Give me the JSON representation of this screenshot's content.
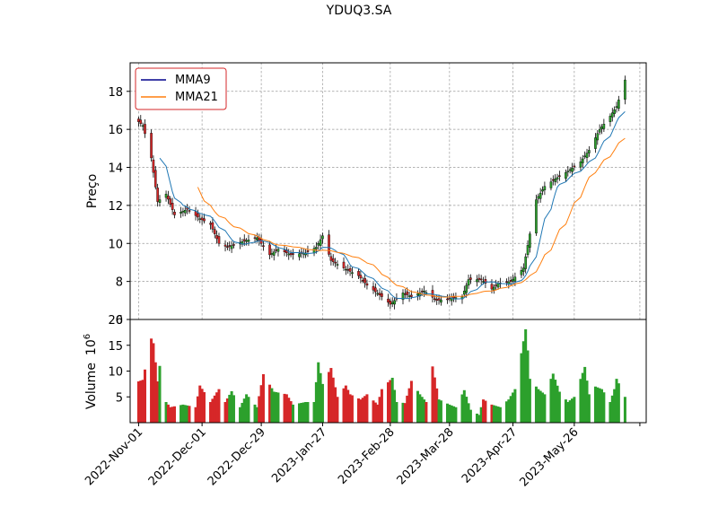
{
  "chart_data": {
    "type": "candlestick",
    "title": "YDUQ3.SA",
    "price_panel": {
      "ylabel": "Preço",
      "ylim": [
        6,
        19.5
      ],
      "yticks": [
        6,
        8,
        10,
        12,
        14,
        16,
        18
      ],
      "grid": true,
      "legend_placement": "top-left",
      "legend": [
        "MMA9",
        "MMA21"
      ],
      "mma9_color": "#1f77b4",
      "mma21_color": "#ff7f0e",
      "legend_mma9_color": "#00008b",
      "up_color": "#2ca02c",
      "down_color": "#d62728",
      "anchors_close": [
        [
          "2022-11-01",
          16.4
        ],
        [
          "2022-11-03",
          16.2
        ],
        [
          "2022-11-07",
          14.5
        ],
        [
          "2022-11-10",
          12.2
        ],
        [
          "2022-11-14",
          12.6
        ],
        [
          "2022-11-18",
          11.5
        ],
        [
          "2022-11-24",
          11.8
        ],
        [
          "2022-11-30",
          11.3
        ],
        [
          "2022-12-05",
          11.0
        ],
        [
          "2022-12-09",
          10.0
        ],
        [
          "2022-12-13",
          9.8
        ],
        [
          "2022-12-20",
          10.1
        ],
        [
          "2022-12-27",
          10.3
        ],
        [
          "2023-01-02",
          9.4
        ],
        [
          "2023-01-06",
          9.7
        ],
        [
          "2023-01-12",
          9.4
        ],
        [
          "2023-01-19",
          9.5
        ],
        [
          "2023-01-24",
          9.8
        ],
        [
          "2023-01-27",
          10.4
        ],
        [
          "2023-01-31",
          9.1
        ],
        [
          "2023-02-06",
          8.7
        ],
        [
          "2023-02-13",
          8.3
        ],
        [
          "2023-02-17",
          7.8
        ],
        [
          "2023-02-24",
          7.2
        ],
        [
          "2023-02-28",
          6.8
        ],
        [
          "2023-03-06",
          7.4
        ],
        [
          "2023-03-10",
          7.2
        ],
        [
          "2023-03-16",
          7.5
        ],
        [
          "2023-03-22",
          7.0
        ],
        [
          "2023-03-28",
          7.1
        ],
        [
          "2023-04-03",
          7.2
        ],
        [
          "2023-04-06",
          8.1
        ],
        [
          "2023-04-12",
          8.1
        ],
        [
          "2023-04-17",
          7.6
        ],
        [
          "2023-04-20",
          7.9
        ],
        [
          "2023-04-26",
          8.0
        ],
        [
          "2023-05-02",
          8.7
        ],
        [
          "2023-05-05",
          10.5
        ],
        [
          "2023-05-08",
          12.3
        ],
        [
          "2023-05-12",
          13.0
        ],
        [
          "2023-05-17",
          13.4
        ],
        [
          "2023-05-23",
          13.8
        ],
        [
          "2023-05-29",
          14.3
        ],
        [
          "2023-06-02",
          14.9
        ],
        [
          "2023-06-07",
          16.0
        ],
        [
          "2023-06-12",
          16.7
        ],
        [
          "2023-06-15",
          17.2
        ],
        [
          "2023-06-19",
          18.6
        ]
      ]
    },
    "volume_panel": {
      "ylabel": "Volume",
      "scale_label": "10",
      "scale_exp": "6",
      "ylim": [
        0,
        20
      ],
      "yticks": [
        5,
        10,
        15,
        20
      ],
      "anchors": [
        [
          "2022-11-01",
          8.0
        ],
        [
          "2022-11-03",
          8.3
        ],
        [
          "2022-11-07",
          16.3
        ],
        [
          "2022-11-08",
          15.4
        ],
        [
          "2022-11-10",
          8.0
        ],
        [
          "2022-11-11",
          11.0
        ],
        [
          "2022-11-14",
          4.0
        ],
        [
          "2022-11-16",
          3.0
        ],
        [
          "2022-11-22",
          3.5
        ],
        [
          "2022-11-28",
          3.0
        ],
        [
          "2022-11-30",
          7.2
        ],
        [
          "2022-12-05",
          4.0
        ],
        [
          "2022-12-09",
          6.5
        ],
        [
          "2022-12-12",
          4.0
        ],
        [
          "2022-12-15",
          6.1
        ],
        [
          "2022-12-19",
          3.0
        ],
        [
          "2022-12-22",
          5.5
        ],
        [
          "2022-12-27",
          3.0
        ],
        [
          "2022-12-30",
          9.4
        ],
        [
          "2023-01-04",
          6.0
        ],
        [
          "2023-01-10",
          5.5
        ],
        [
          "2023-01-13",
          3.5
        ],
        [
          "2023-01-19",
          4.0
        ],
        [
          "2023-01-23",
          4.0
        ],
        [
          "2023-01-25",
          11.7
        ],
        [
          "2023-01-27",
          7.5
        ],
        [
          "2023-01-31",
          10.6
        ],
        [
          "2023-02-03",
          5.0
        ],
        [
          "2023-02-07",
          7.2
        ],
        [
          "2023-02-09",
          5.5
        ],
        [
          "2023-02-14",
          4.5
        ],
        [
          "2023-02-17",
          5.5
        ],
        [
          "2023-02-22",
          3.5
        ],
        [
          "2023-02-24",
          6.5
        ],
        [
          "2023-03-01",
          8.7
        ],
        [
          "2023-03-03",
          4.0
        ],
        [
          "2023-03-07",
          3.8
        ],
        [
          "2023-03-10",
          8.1
        ],
        [
          "2023-03-14",
          5.5
        ],
        [
          "2023-03-17",
          4.0
        ],
        [
          "2023-03-20",
          10.9
        ],
        [
          "2023-03-23",
          4.5
        ],
        [
          "2023-03-28",
          3.5
        ],
        [
          "2023-03-31",
          3.0
        ],
        [
          "2023-04-04",
          6.3
        ],
        [
          "2023-04-07",
          2.5
        ],
        [
          "2023-04-11",
          1.5
        ],
        [
          "2023-04-13",
          4.5
        ],
        [
          "2023-04-17",
          3.5
        ],
        [
          "2023-04-21",
          3.0
        ],
        [
          "2023-04-25",
          4.5
        ],
        [
          "2023-04-28",
          6.5
        ],
        [
          "2023-05-03",
          18.1
        ],
        [
          "2023-05-04",
          14.0
        ],
        [
          "2023-05-05",
          8.5
        ],
        [
          "2023-05-09",
          6.5
        ],
        [
          "2023-05-12",
          5.5
        ],
        [
          "2023-05-16",
          9.5
        ],
        [
          "2023-05-19",
          6.0
        ],
        [
          "2023-05-23",
          4.0
        ],
        [
          "2023-05-26",
          5.0
        ],
        [
          "2023-05-31",
          10.8
        ],
        [
          "2023-06-02",
          5.5
        ],
        [
          "2023-06-05",
          7.0
        ],
        [
          "2023-06-08",
          6.5
        ],
        [
          "2023-06-12",
          4.0
        ],
        [
          "2023-06-14",
          6.5
        ],
        [
          "2023-06-15",
          8.5
        ],
        [
          "2023-06-19",
          5.0
        ]
      ]
    },
    "x_ticks": [
      [
        "2022-11-01",
        "2022-Nov-01"
      ],
      [
        "2022-12-01",
        "2022-Dec-01"
      ],
      [
        "2022-12-29",
        "2022-Dec-29"
      ],
      [
        "2023-01-27",
        "2023-Jan-27"
      ],
      [
        "2023-02-28",
        "2023-Feb-28"
      ],
      [
        "2023-03-28",
        "2023-Mar-28"
      ],
      [
        "2023-04-27",
        "2023-Apr-27"
      ],
      [
        "2023-05-26",
        "2023-May-26"
      ],
      [
        "2023-06-26",
        ""
      ]
    ],
    "date_range": [
      "2022-10-28",
      "2023-06-29"
    ]
  }
}
